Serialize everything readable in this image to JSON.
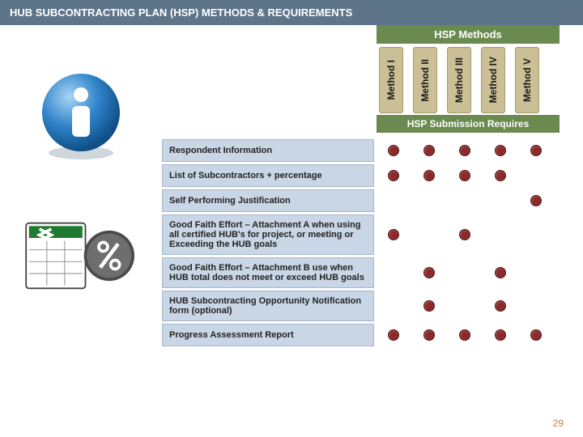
{
  "header": {
    "prefix": "HUB SUBCONTRACTING PLAN (HSP)",
    "suffix": "METHODS & REQUIREMENTS"
  },
  "methods_title": "HSP Methods",
  "method_labels": [
    "Method I",
    "Method II",
    "Method III",
    "Method IV",
    "Method V"
  ],
  "submission_title": "HSP Submission Requires",
  "rows": [
    {
      "label": "Respondent Information",
      "dots": [
        true,
        true,
        true,
        true,
        true
      ]
    },
    {
      "label": "List of Subcontractors + percentage",
      "dots": [
        true,
        true,
        true,
        true,
        false
      ]
    },
    {
      "label": "Self Performing Justification",
      "dots": [
        false,
        false,
        false,
        false,
        true
      ]
    },
    {
      "label": "Good Faith Effort – Attachment A  when using all certified HUB's for project, or meeting or Exceeding the HUB goals",
      "dots": [
        true,
        false,
        true,
        false,
        false
      ]
    },
    {
      "label": "Good Faith Effort – Attachment B use when HUB total does not meet or exceed HUB goals",
      "dots": [
        false,
        true,
        false,
        true,
        false
      ]
    },
    {
      "label": "HUB Subcontracting Opportunity Notification form (optional)",
      "dots": [
        false,
        true,
        false,
        true,
        false
      ]
    },
    {
      "label": "Progress Assessment Report",
      "dots": [
        true,
        true,
        true,
        true,
        true
      ]
    }
  ],
  "page_number": "29",
  "colors": {
    "header_bg": "#5d7489",
    "green_bar": "#6a8a4f",
    "tab_bg": "#cbbf96",
    "row_bg": "#c8d6e5",
    "dot": "#8b2a2a"
  }
}
